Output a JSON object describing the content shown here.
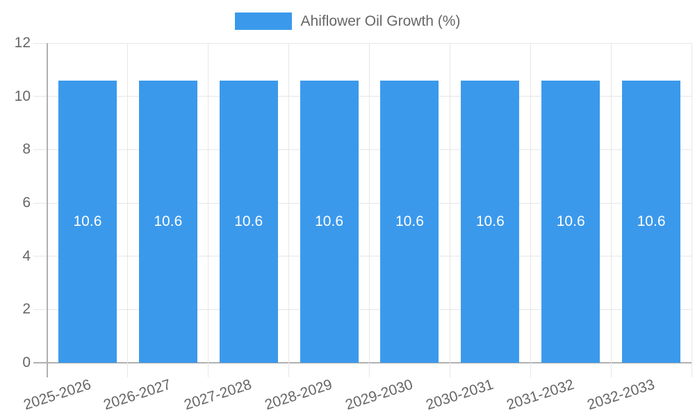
{
  "chart": {
    "legend": {
      "label": "Ahiflower Oil Growth (%)"
    }
  },
  "chart_data": {
    "type": "bar",
    "title": "",
    "xlabel": "",
    "ylabel": "",
    "categories": [
      "2025-2026",
      "2026-2027",
      "2027-2028",
      "2028-2029",
      "2029-2030",
      "2030-2031",
      "2031-2032",
      "2032-2033"
    ],
    "series": [
      {
        "name": "Ahiflower Oil Growth (%)",
        "values": [
          10.6,
          10.6,
          10.6,
          10.6,
          10.6,
          10.6,
          10.6,
          10.6
        ]
      }
    ],
    "value_labels": [
      "10.6",
      "10.6",
      "10.6",
      "10.6",
      "10.6",
      "10.6",
      "10.6",
      "10.6"
    ],
    "ylim": [
      0,
      12
    ],
    "y_ticks": [
      0,
      2,
      4,
      6,
      8,
      10,
      12
    ],
    "y_tick_labels": [
      "0",
      "2",
      "4",
      "6",
      "8",
      "10",
      "12"
    ],
    "grid": true,
    "legend_position": "top",
    "x_tick_rotation_deg": -18,
    "colors": {
      "bar": "#3b99ec",
      "grid_line": "#e6e6e6",
      "axis_line": "#b0b0b0",
      "tick_text": "#666666",
      "value_label": "#ffffff",
      "background": "#ffffff"
    }
  }
}
